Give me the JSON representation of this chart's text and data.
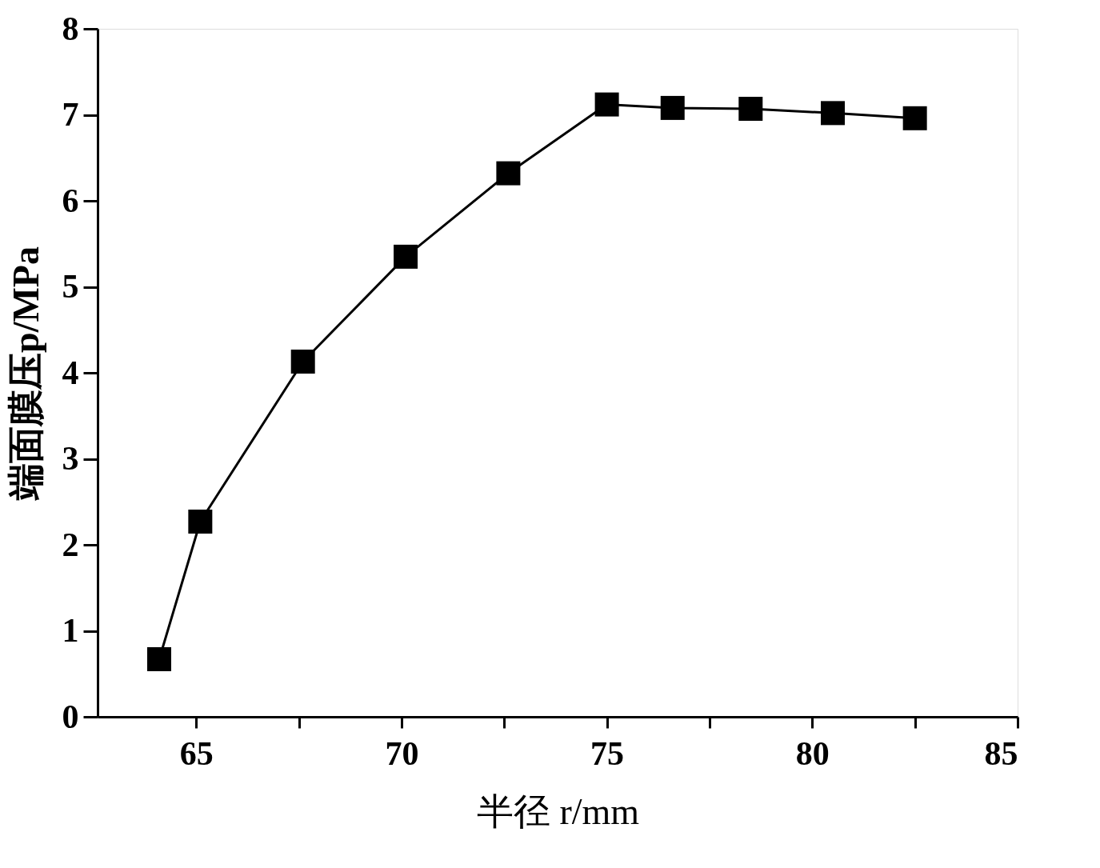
{
  "chart_data": {
    "type": "line",
    "xlabel": "半径 r/mm",
    "ylabel": "端面膜压p/MPa",
    "x": [
      64.1,
      65.1,
      67.6,
      70.1,
      72.6,
      75.0,
      76.6,
      78.5,
      80.5,
      82.5
    ],
    "series": [
      {
        "color": "#000000",
        "values": [
          0.67,
          2.27,
          4.13,
          5.35,
          6.32,
          7.12,
          7.08,
          7.07,
          7.02,
          6.96
        ]
      }
    ],
    "xlim": [
      62.6,
      85
    ],
    "xticks": [
      65,
      {
        "value": 67.5,
        "label": null
      },
      70,
      {
        "value": 72.5,
        "label": null
      },
      75,
      {
        "value": 77.5,
        "label": null
      },
      80,
      {
        "value": 82.5,
        "label": null
      },
      85
    ],
    "ylim": [
      0,
      8
    ],
    "yticks": [
      0,
      1,
      2,
      3,
      4,
      5,
      6,
      7,
      8
    ],
    "marker": "square",
    "line_style": "solid",
    "grid": false
  }
}
